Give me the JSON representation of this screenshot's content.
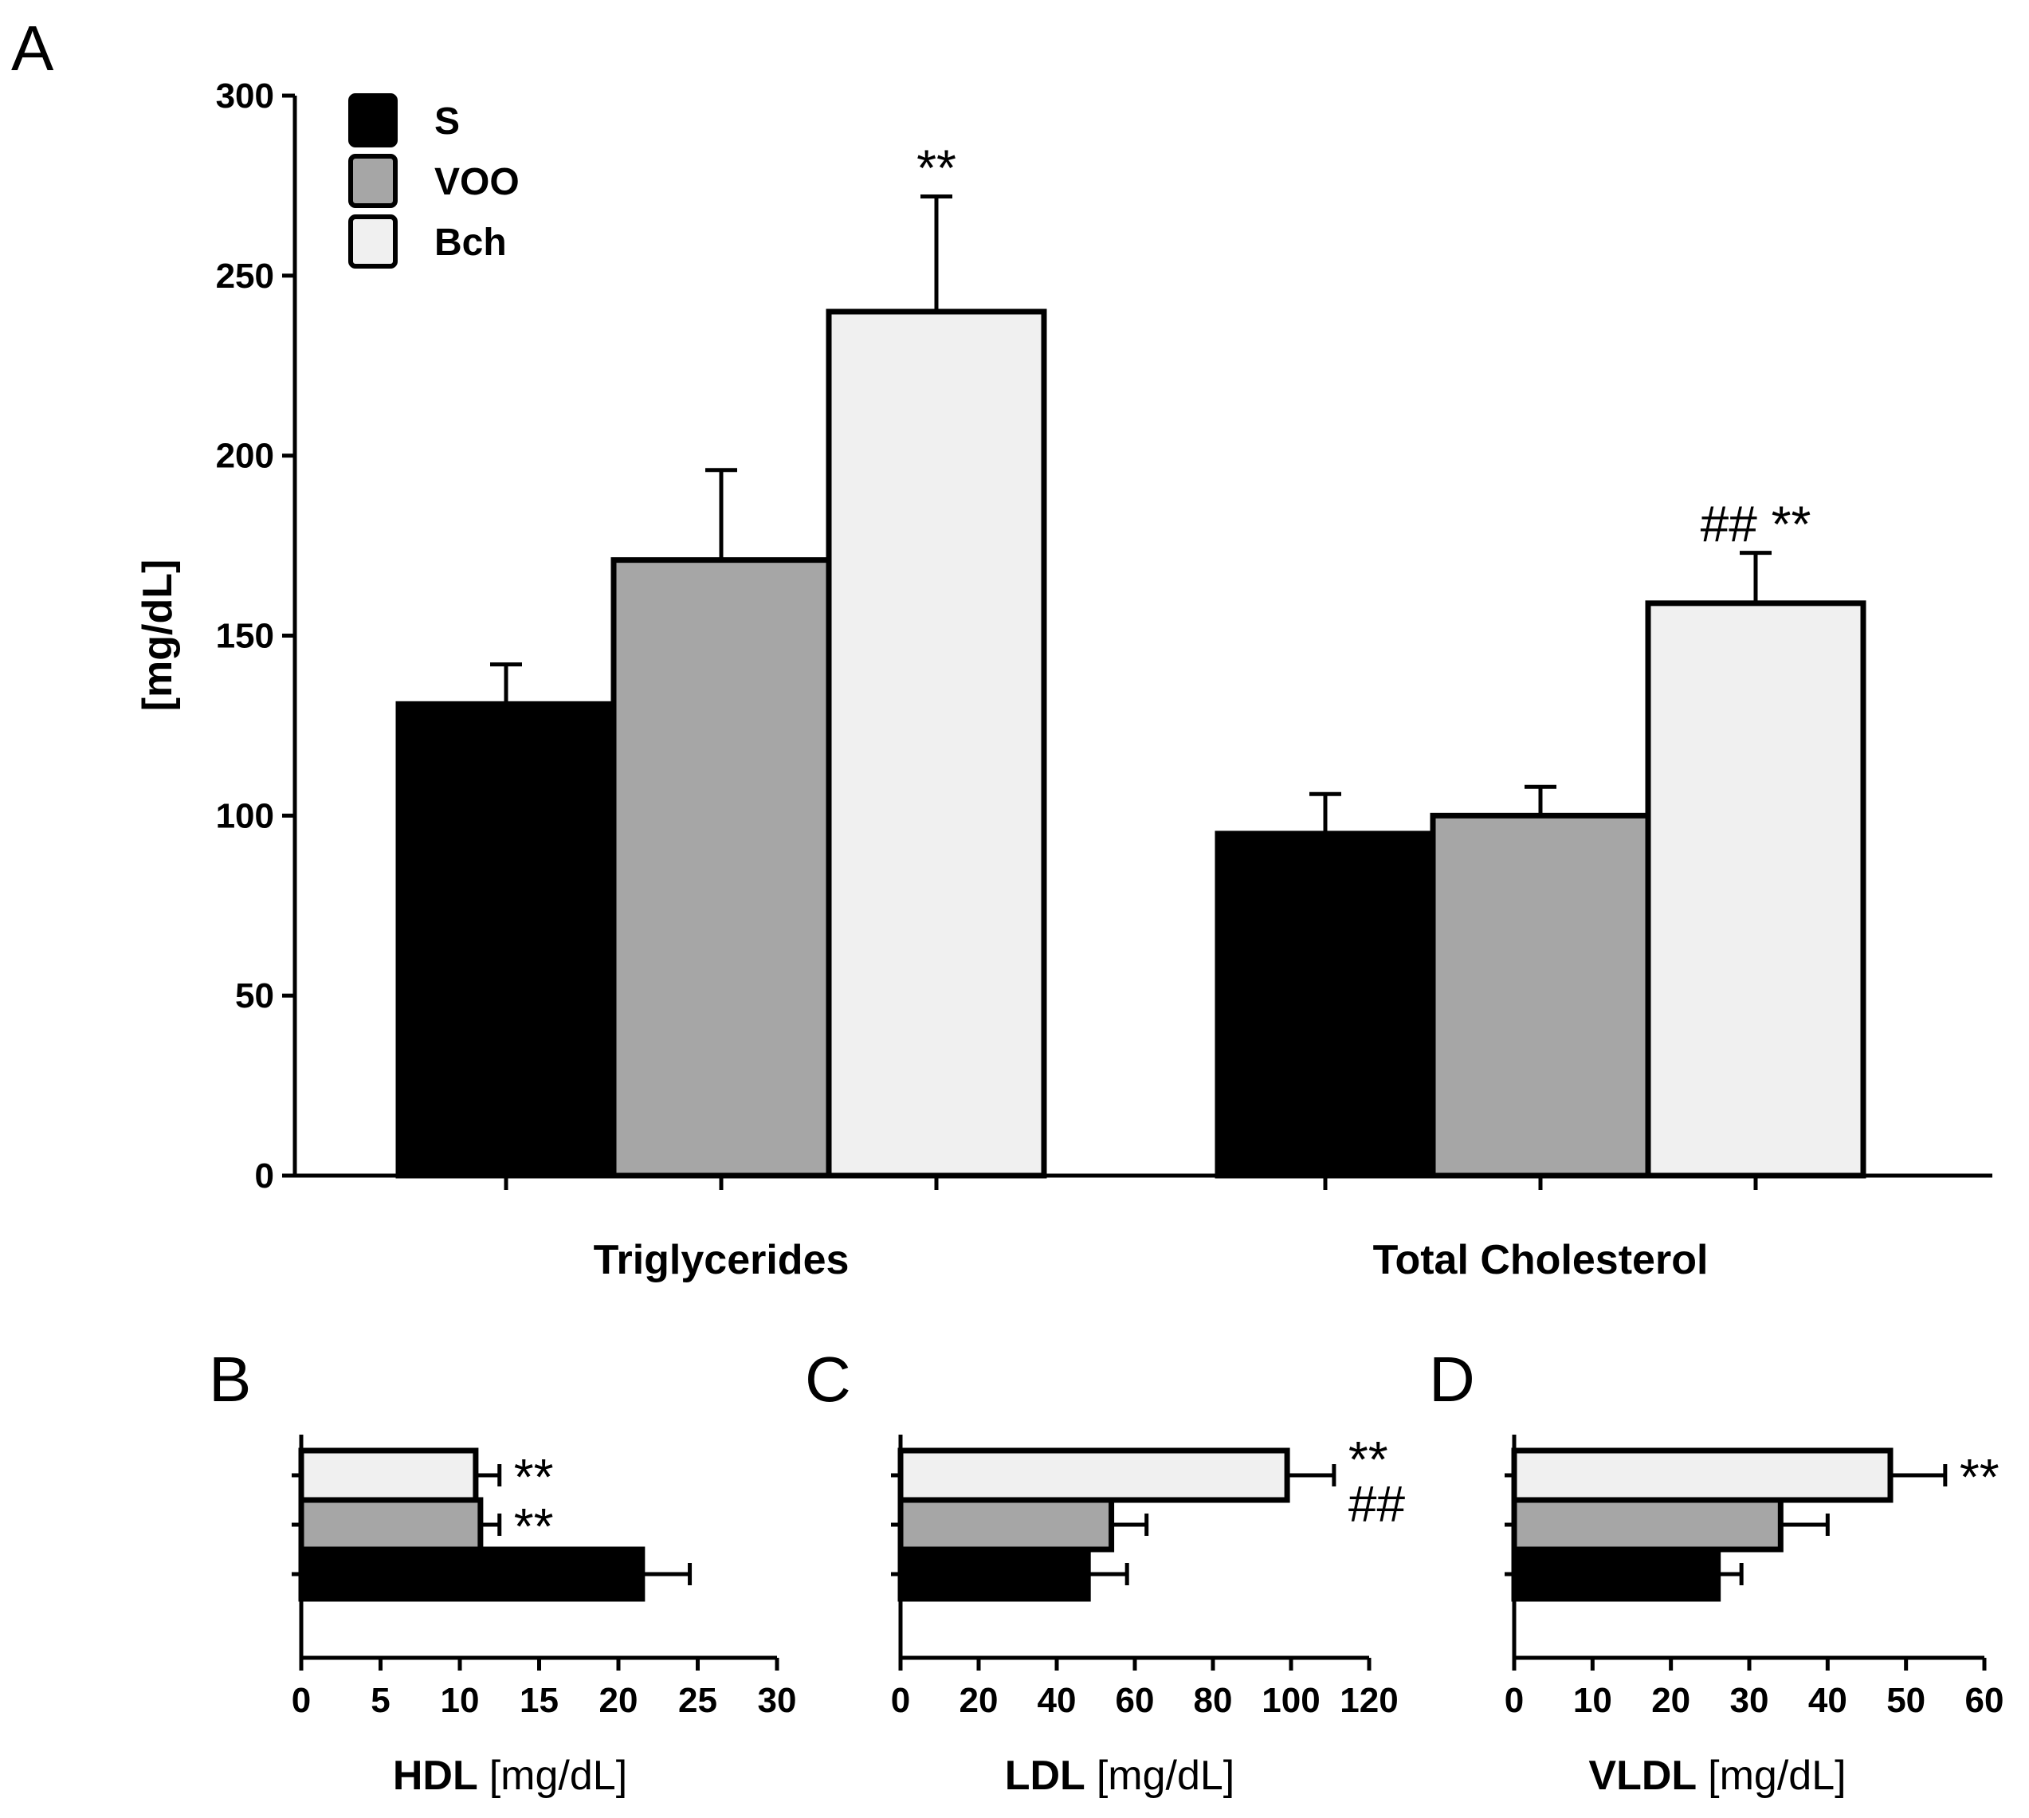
{
  "colors": {
    "S": "#000000",
    "VOO": "#a6a6a6",
    "Bch": "#f0f0f0"
  },
  "chart_data": [
    {
      "panel": "A",
      "type": "bar",
      "categories": [
        "Triglycerides",
        "Total Cholesterol"
      ],
      "series": [
        {
          "name": "S",
          "values": [
            131,
            95
          ],
          "errors": [
            11,
            11
          ]
        },
        {
          "name": "VOO",
          "values": [
            171,
            100
          ],
          "errors": [
            25,
            8
          ]
        },
        {
          "name": "Bch",
          "values": [
            240,
            159
          ],
          "errors": [
            32,
            14
          ]
        }
      ],
      "annotations": [
        {
          "category": "Triglycerides",
          "series": "Bch",
          "text": "**"
        },
        {
          "category": "Total Cholesterol",
          "series": "Bch",
          "text": "## **"
        }
      ],
      "ylabel": "[mg/dL]",
      "ylim": [
        0,
        300
      ],
      "yticks": [
        "0",
        "50",
        "100",
        "150",
        "200",
        "250",
        "300"
      ],
      "legend": {
        "position": "top-left",
        "entries": [
          "S",
          "VOO",
          "Bch"
        ]
      }
    },
    {
      "panel": "B",
      "type": "bar",
      "orientation": "horizontal",
      "series": [
        {
          "name": "Bch",
          "value": 11,
          "error": 1.5,
          "annotation": "**"
        },
        {
          "name": "VOO",
          "value": 11.3,
          "error": 1.2,
          "annotation": "**"
        },
        {
          "name": "S",
          "value": 21.5,
          "error": 3,
          "annotation": ""
        }
      ],
      "xlabel_bold": "HDL",
      "xlabel_unit": "[mg/dL]",
      "xlim": [
        0,
        30
      ],
      "xticks": [
        "0",
        "5",
        "10",
        "15",
        "20",
        "25",
        "30"
      ]
    },
    {
      "panel": "C",
      "type": "bar",
      "orientation": "horizontal",
      "series": [
        {
          "name": "Bch",
          "value": 99,
          "error": 12,
          "annotation": "**\n##"
        },
        {
          "name": "VOO",
          "value": 54,
          "error": 9,
          "annotation": ""
        },
        {
          "name": "S",
          "value": 48,
          "error": 10,
          "annotation": ""
        }
      ],
      "xlabel_bold": "LDL",
      "xlabel_unit": "[mg/dL]",
      "xlim": [
        0,
        120
      ],
      "xticks": [
        "0",
        "20",
        "40",
        "60",
        "80",
        "100",
        "120"
      ]
    },
    {
      "panel": "D",
      "type": "bar",
      "orientation": "horizontal",
      "series": [
        {
          "name": "Bch",
          "value": 48,
          "error": 7,
          "annotation": "**"
        },
        {
          "name": "VOO",
          "value": 34,
          "error": 6,
          "annotation": ""
        },
        {
          "name": "S",
          "value": 26,
          "error": 3,
          "annotation": ""
        }
      ],
      "xlabel_bold": "VLDL",
      "xlabel_unit": "[mg/dL]",
      "xlim": [
        0,
        60
      ],
      "xticks": [
        "0",
        "10",
        "20",
        "30",
        "40",
        "50",
        "60"
      ]
    }
  ]
}
